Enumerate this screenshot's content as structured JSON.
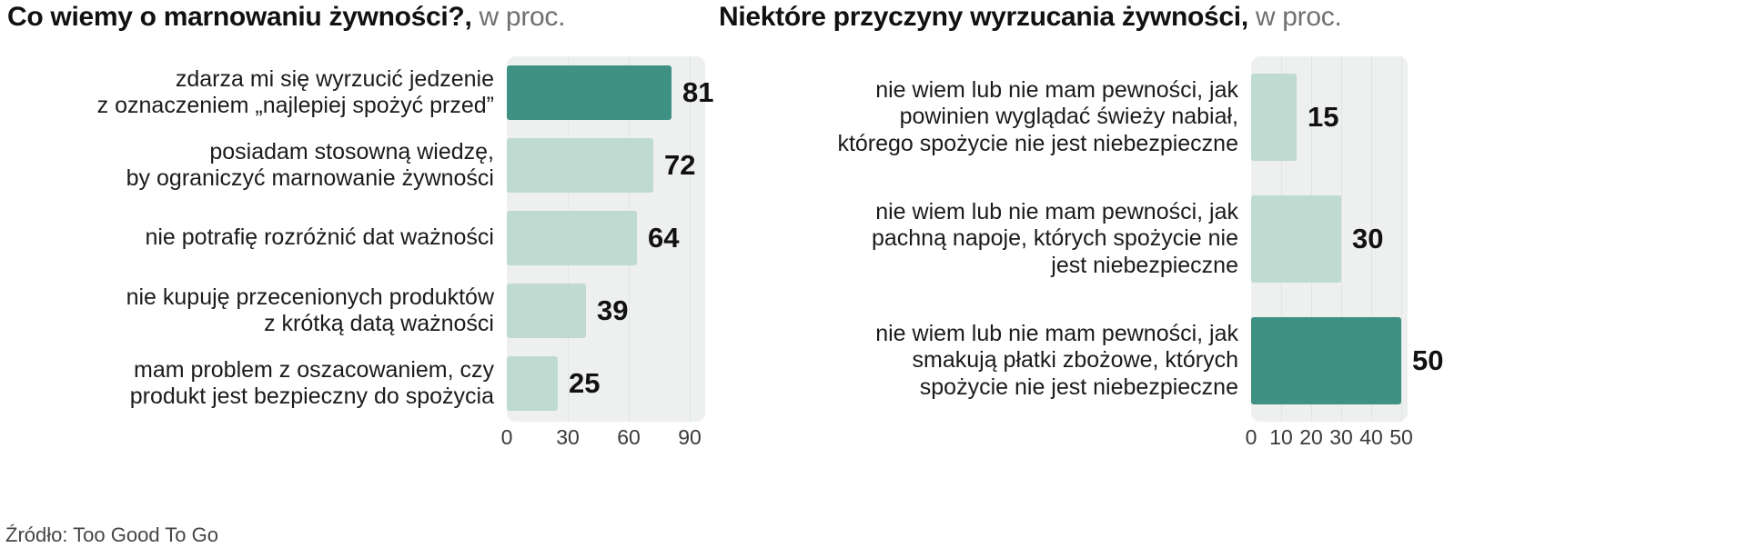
{
  "source": "Źródło: Too Good To Go",
  "colors": {
    "bar_light": "#bfdad1",
    "bar_dark": "#3e9183",
    "plot_bg": "#edf0ee",
    "gridline": "#e0e4e2"
  },
  "chart_data": [
    {
      "type": "bar",
      "orientation": "horizontal",
      "title": "Co wiemy o marnowaniu żywności?,",
      "title_suffix": " w proc.",
      "categories": [
        "zdarza mi się wyrzucić jedzenie\nz oznaczeniem „najlepiej spożyć przed”",
        "posiadam stosowną wiedzę,\nby ograniczyć marnowanie żywności",
        "nie potrafię rozróżnić dat ważności",
        "nie kupuję przecenionych produktów\nz krótką datą ważności",
        "mam problem z oszacowaniem, czy\nprodukt jest bezpieczny do spożycia"
      ],
      "values": [
        81,
        72,
        64,
        39,
        25
      ],
      "highlight_index": 0,
      "xlim": [
        0,
        90
      ],
      "xticks": [
        0,
        30,
        60,
        90
      ],
      "legend": "none",
      "grid": "vertical-faint"
    },
    {
      "type": "bar",
      "orientation": "horizontal",
      "title": "Niektóre przyczyny wyrzucania żywności,",
      "title_suffix": " w proc.",
      "categories": [
        "nie wiem lub nie mam pewności, jak\npowinien wyglądać świeży nabiał,\nktórego spożycie nie jest niebezpieczne",
        "nie wiem lub nie mam pewności, jak\npachną napoje, których spożycie nie\njest niebezpieczne",
        "nie wiem lub nie mam pewności, jak\nsmakują płatki zbożowe, których\nspożycie nie jest niebezpieczne"
      ],
      "values": [
        15,
        30,
        50
      ],
      "highlight_index": 2,
      "xlim": [
        0,
        50
      ],
      "xticks": [
        0,
        10,
        20,
        30,
        40,
        50
      ],
      "legend": "none",
      "grid": "vertical-faint"
    }
  ]
}
